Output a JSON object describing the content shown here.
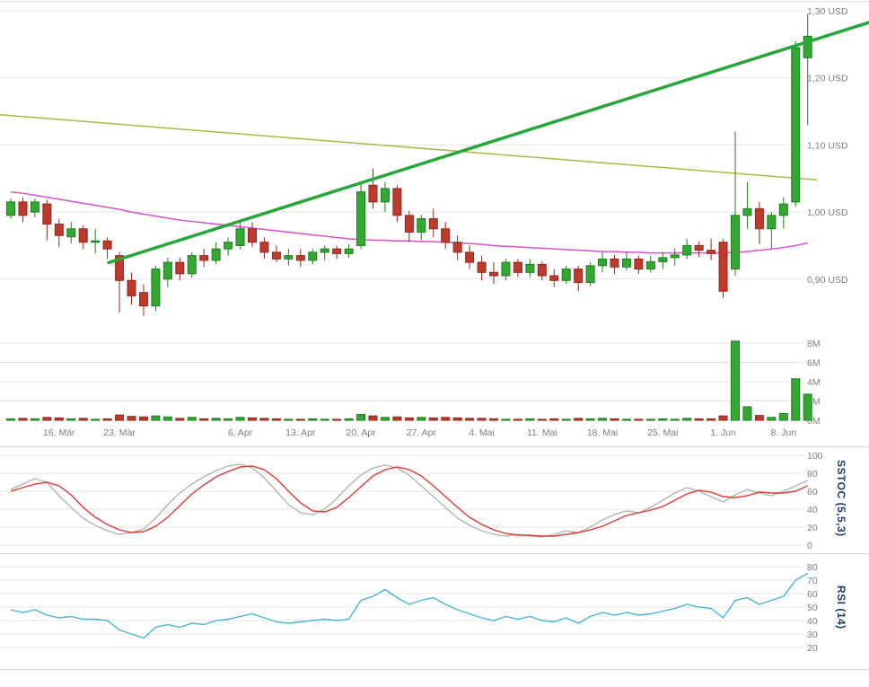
{
  "panels": {
    "sstoc_title": "SSTOC (5,5,3)",
    "rsi_title": "RSI (14)"
  },
  "axes": {
    "price": {
      "labels": [
        "1,30 USD",
        "1,20 USD",
        "1,10 USD",
        "1,00 USD",
        "0,90 USD"
      ],
      "values": [
        1.3,
        1.2,
        1.1,
        1.0,
        0.9
      ]
    },
    "volume": {
      "labels": [
        "8M",
        "6M",
        "4M",
        "2M",
        "0M"
      ],
      "values": [
        8,
        6,
        4,
        2,
        0
      ]
    },
    "x": {
      "labels": [
        "16. Mär",
        "23. Mär",
        "6. Apr",
        "13. Apr",
        "20. Apr",
        "27. Apr",
        "4. Mai",
        "11. Mai",
        "18. Mai",
        "25. Mai",
        "1. Jun",
        "8. Jun"
      ],
      "indices": [
        4,
        9,
        19,
        24,
        29,
        34,
        39,
        44,
        49,
        54,
        59,
        64
      ]
    },
    "sstoc": {
      "labels": [
        "100",
        "80",
        "60",
        "40",
        "20",
        "0"
      ],
      "values": [
        100,
        80,
        60,
        40,
        20,
        0
      ]
    },
    "rsi": {
      "labels": [
        "80",
        "70",
        "60",
        "50",
        "40",
        "30",
        "20"
      ],
      "values": [
        80,
        70,
        60,
        50,
        40,
        30,
        20
      ]
    }
  },
  "colors": {
    "background": "#ffffff",
    "grid": "#e4e4e4",
    "separator": "#d6d6d6",
    "axis_text": "#7f7f7f",
    "panel_title": "#1a3c6e",
    "up": "#33a832",
    "up_border": "#1f7d1f",
    "down": "#bf3a2b",
    "down_border": "#8e2a1f",
    "trend": "#27a73a",
    "olive": "#adb845",
    "magenta": "#dd4fcd",
    "sstoc_gray": "#b5b5b5",
    "sstoc_red": "#e03a30",
    "rsi_cyan": "#46b6d9"
  },
  "chart_data": {
    "type": "candlestick",
    "unit": "USD",
    "price_axis_ticks": [
      1.3,
      1.2,
      1.1,
      1.0,
      0.9
    ],
    "volume_axis_ticks_millions": [
      8,
      6,
      4,
      2,
      0
    ],
    "x_tick_labels": [
      "16. Mär",
      "23. Mär",
      "6. Apr",
      "13. Apr",
      "20. Apr",
      "27. Apr",
      "4. Mai",
      "11. Mai",
      "18. Mai",
      "25. Mai",
      "1. Jun",
      "8. Jun"
    ],
    "x_tick_candle_indices": [
      4,
      9,
      19,
      24,
      29,
      34,
      39,
      44,
      49,
      54,
      59,
      64
    ],
    "candles_ohlc": [
      [
        0.995,
        1.02,
        0.99,
        1.015
      ],
      [
        1.015,
        1.022,
        0.985,
        0.995
      ],
      [
        1.0,
        1.02,
        0.992,
        1.015
      ],
      [
        1.012,
        1.018,
        0.958,
        0.982
      ],
      [
        0.982,
        0.99,
        0.948,
        0.965
      ],
      [
        0.963,
        0.985,
        0.953,
        0.975
      ],
      [
        0.975,
        0.98,
        0.945,
        0.955
      ],
      [
        0.955,
        0.975,
        0.938,
        0.957
      ],
      [
        0.957,
        0.962,
        0.93,
        0.945
      ],
      [
        0.935,
        0.94,
        0.85,
        0.898
      ],
      [
        0.898,
        0.91,
        0.862,
        0.875
      ],
      [
        0.88,
        0.892,
        0.845,
        0.86
      ],
      [
        0.86,
        0.92,
        0.852,
        0.915
      ],
      [
        0.9,
        0.932,
        0.888,
        0.925
      ],
      [
        0.925,
        0.932,
        0.898,
        0.908
      ],
      [
        0.908,
        0.94,
        0.902,
        0.935
      ],
      [
        0.935,
        0.945,
        0.918,
        0.928
      ],
      [
        0.928,
        0.955,
        0.922,
        0.945
      ],
      [
        0.945,
        0.962,
        0.935,
        0.955
      ],
      [
        0.95,
        0.985,
        0.945,
        0.975
      ],
      [
        0.975,
        0.985,
        0.948,
        0.955
      ],
      [
        0.955,
        0.962,
        0.93,
        0.94
      ],
      [
        0.94,
        0.95,
        0.925,
        0.93
      ],
      [
        0.93,
        0.945,
        0.92,
        0.935
      ],
      [
        0.935,
        0.945,
        0.918,
        0.928
      ],
      [
        0.928,
        0.945,
        0.922,
        0.94
      ],
      [
        0.94,
        0.95,
        0.928,
        0.945
      ],
      [
        0.945,
        0.95,
        0.93,
        0.938
      ],
      [
        0.938,
        0.952,
        0.932,
        0.945
      ],
      [
        0.95,
        1.042,
        0.945,
        1.03
      ],
      [
        1.04,
        1.065,
        1.005,
        1.015
      ],
      [
        1.015,
        1.045,
        1.0,
        1.035
      ],
      [
        1.035,
        1.04,
        0.985,
        0.995
      ],
      [
        0.995,
        1.002,
        0.955,
        0.97
      ],
      [
        0.97,
        0.996,
        0.958,
        0.99
      ],
      [
        0.99,
        1.005,
        0.962,
        0.975
      ],
      [
        0.975,
        0.985,
        0.945,
        0.955
      ],
      [
        0.955,
        0.965,
        0.928,
        0.94
      ],
      [
        0.94,
        0.95,
        0.915,
        0.925
      ],
      [
        0.925,
        0.935,
        0.898,
        0.91
      ],
      [
        0.91,
        0.925,
        0.893,
        0.905
      ],
      [
        0.905,
        0.93,
        0.898,
        0.925
      ],
      [
        0.925,
        0.93,
        0.903,
        0.91
      ],
      [
        0.91,
        0.93,
        0.903,
        0.922
      ],
      [
        0.922,
        0.926,
        0.898,
        0.905
      ],
      [
        0.905,
        0.915,
        0.888,
        0.898
      ],
      [
        0.898,
        0.92,
        0.893,
        0.915
      ],
      [
        0.915,
        0.92,
        0.882,
        0.895
      ],
      [
        0.895,
        0.925,
        0.89,
        0.92
      ],
      [
        0.92,
        0.94,
        0.91,
        0.93
      ],
      [
        0.93,
        0.936,
        0.908,
        0.918
      ],
      [
        0.918,
        0.94,
        0.913,
        0.93
      ],
      [
        0.93,
        0.935,
        0.908,
        0.915
      ],
      [
        0.915,
        0.935,
        0.91,
        0.926
      ],
      [
        0.926,
        0.94,
        0.915,
        0.932
      ],
      [
        0.932,
        0.946,
        0.92,
        0.936
      ],
      [
        0.936,
        0.96,
        0.93,
        0.95
      ],
      [
        0.95,
        0.956,
        0.933,
        0.943
      ],
      [
        0.943,
        0.96,
        0.928,
        0.938
      ],
      [
        0.955,
        0.96,
        0.872,
        0.882
      ],
      [
        0.915,
        1.12,
        0.905,
        0.995
      ],
      [
        0.995,
        1.045,
        0.975,
        1.005
      ],
      [
        1.005,
        1.015,
        0.952,
        0.975
      ],
      [
        0.975,
        1.0,
        0.945,
        0.995
      ],
      [
        0.995,
        1.022,
        0.975,
        1.012
      ],
      [
        1.015,
        1.255,
        1.008,
        1.245
      ],
      [
        1.23,
        1.295,
        1.13,
        1.262
      ]
    ],
    "volumes_millions": [
      0.15,
      0.2,
      0.15,
      0.3,
      0.25,
      0.15,
      0.2,
      0.1,
      0.15,
      0.55,
      0.4,
      0.35,
      0.45,
      0.35,
      0.2,
      0.3,
      0.15,
      0.2,
      0.15,
      0.3,
      0.25,
      0.2,
      0.15,
      0.1,
      0.1,
      0.15,
      0.1,
      0.1,
      0.15,
      0.6,
      0.45,
      0.3,
      0.35,
      0.25,
      0.3,
      0.25,
      0.3,
      0.25,
      0.2,
      0.2,
      0.15,
      0.1,
      0.1,
      0.15,
      0.1,
      0.15,
      0.1,
      0.2,
      0.15,
      0.2,
      0.15,
      0.1,
      0.1,
      0.1,
      0.15,
      0.1,
      0.2,
      0.15,
      0.15,
      0.45,
      8.2,
      1.4,
      0.5,
      0.3,
      0.7,
      4.3,
      2.7
    ],
    "overlays": {
      "ma_magenta": [
        1.03,
        1.028,
        1.025,
        1.022,
        1.019,
        1.016,
        1.013,
        1.01,
        1.007,
        1.004,
        1.0,
        0.997,
        0.994,
        0.991,
        0.988,
        0.986,
        0.984,
        0.982,
        0.98,
        0.978,
        0.976,
        0.974,
        0.972,
        0.97,
        0.968,
        0.966,
        0.964,
        0.962,
        0.96,
        0.959,
        0.958,
        0.958,
        0.957,
        0.957,
        0.956,
        0.956,
        0.955,
        0.954,
        0.953,
        0.952,
        0.95,
        0.949,
        0.948,
        0.947,
        0.946,
        0.945,
        0.944,
        0.943,
        0.942,
        0.941,
        0.941,
        0.94,
        0.94,
        0.939,
        0.939,
        0.939,
        0.939,
        0.939,
        0.939,
        0.939,
        0.94,
        0.941,
        0.943,
        0.945,
        0.947,
        0.95,
        0.954
      ],
      "olive_line": {
        "start_price": 1.145,
        "end_price": 1.048
      },
      "trendline": {
        "start_index": 8,
        "start_price": 0.924,
        "end_index": 71.5,
        "end_price": 1.285
      }
    },
    "indicators": {
      "sstoc": {
        "name": "SSTOC (5,5,3)",
        "range": [
          0,
          100
        ],
        "k_percent": [
          62,
          68,
          74,
          70,
          55,
          42,
          30,
          22,
          16,
          12,
          14,
          18,
          30,
          45,
          58,
          68,
          76,
          83,
          88,
          90,
          86,
          75,
          60,
          45,
          36,
          34,
          40,
          52,
          66,
          78,
          86,
          89,
          86,
          78,
          66,
          54,
          42,
          30,
          22,
          16,
          12,
          10,
          12,
          10,
          9,
          12,
          16,
          14,
          20,
          28,
          34,
          38,
          36,
          42,
          50,
          58,
          64,
          60,
          54,
          48,
          56,
          62,
          58,
          55,
          60,
          66,
          72
        ],
        "d_percent": [
          60,
          64,
          68,
          70,
          66,
          56,
          42,
          31,
          23,
          17,
          14,
          15,
          21,
          31,
          44,
          57,
          67,
          76,
          82,
          87,
          88,
          84,
          74,
          60,
          47,
          38,
          37,
          42,
          53,
          65,
          77,
          84,
          87,
          84,
          77,
          66,
          54,
          42,
          31,
          23,
          17,
          13,
          11,
          11,
          10,
          10,
          12,
          14,
          17,
          21,
          27,
          33,
          36,
          39,
          43,
          50,
          57,
          61,
          59,
          54,
          53,
          55,
          59,
          58,
          58,
          60,
          66
        ]
      },
      "rsi": {
        "name": "RSI (14)",
        "range": [
          20,
          80
        ],
        "values": [
          48,
          46,
          48,
          44,
          42,
          43,
          41,
          41,
          40,
          33,
          30,
          27,
          35,
          37,
          35,
          38,
          37,
          40,
          41,
          43,
          45,
          42,
          39,
          38,
          39,
          40,
          41,
          40,
          41,
          55,
          58,
          63,
          57,
          52,
          55,
          57,
          52,
          48,
          45,
          42,
          40,
          43,
          41,
          43,
          40,
          39,
          42,
          38,
          43,
          46,
          44,
          46,
          44,
          45,
          47,
          49,
          52,
          50,
          49,
          42,
          55,
          57,
          52,
          55,
          58,
          70,
          75
        ]
      }
    }
  }
}
